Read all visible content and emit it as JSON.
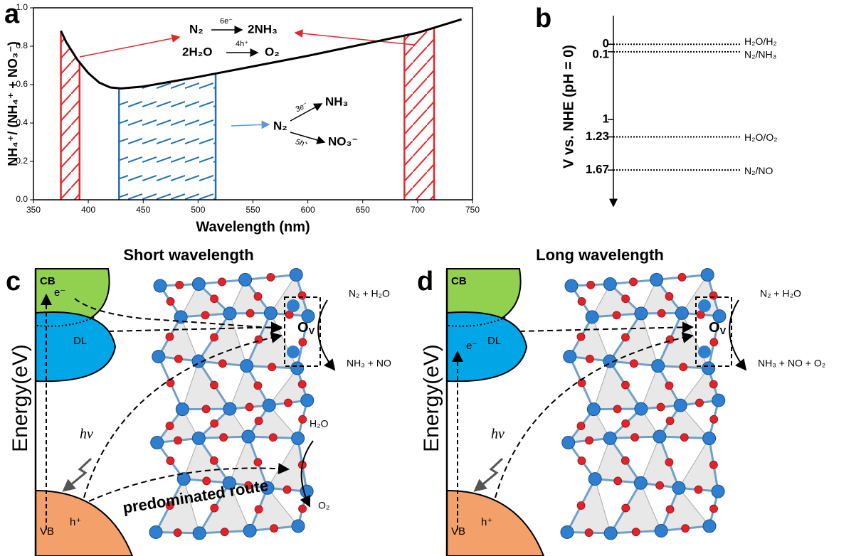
{
  "chart_data": [
    {
      "type": "line",
      "panel_label": "a",
      "xlabel": "Wavelength (nm)",
      "ylabel": "NH₄⁺/ (NH₄⁺ + NO₃⁻)",
      "x": [
        375,
        380,
        390,
        400,
        410,
        420,
        430,
        450,
        500,
        550,
        600,
        650,
        700,
        740
      ],
      "values": [
        0.88,
        0.82,
        0.73,
        0.66,
        0.61,
        0.585,
        0.58,
        0.59,
        0.64,
        0.695,
        0.75,
        0.81,
        0.87,
        0.94
      ],
      "color": "#000000",
      "xlim": [
        350,
        750
      ],
      "xticks": [
        350,
        400,
        450,
        500,
        550,
        600,
        650,
        700,
        750
      ],
      "ylim": [
        0,
        1
      ],
      "yticks": [
        {
          "value": 0,
          "label": "0.0"
        },
        0.2,
        0.4,
        0.6,
        0.8,
        {
          "value": 1,
          "label": "1.0"
        }
      ],
      "regions": [
        {
          "x": [
            375,
            392
          ],
          "color": "#e3262b"
        },
        {
          "x": [
            428,
            516
          ],
          "color": "#1f6fb2"
        },
        {
          "x": [
            688,
            715
          ],
          "color": "#e3262b"
        }
      ],
      "annotations": {
        "reaction_1": {
          "reactant": "N₂",
          "over": "6e⁻",
          "product": "2NH₃"
        },
        "reaction_2": {
          "reactant": "2H₂O",
          "over": "4h⁺",
          "product": "O₂"
        },
        "branch": {
          "reactant": "N₂",
          "upper_over": "3e⁻",
          "upper_product": "NH₃",
          "lower_over": "5h⁺",
          "lower_product": "NO₃⁻"
        }
      }
    },
    {
      "type": "levels",
      "panel_label": "b",
      "ylabel": "V vs. NHE (pH = 0)",
      "categories": [
        "H₂O/H₂",
        "N₂/NH₃",
        "H₂O/O₂",
        "N₂/NO"
      ],
      "values": [
        0,
        0.1,
        1.23,
        1.67
      ],
      "ylim": [
        -0.38,
        2.15
      ],
      "yticks": [
        0,
        0.1,
        1,
        1.23,
        1.67
      ]
    }
  ],
  "panels": [
    {
      "label": "c",
      "title": "Short wavelength",
      "energy_axis": "Energy(eV)",
      "cb": "CB",
      "dl": "DL",
      "vb": "VB",
      "electron": "e⁻",
      "hole": "h⁺",
      "photon": "hν",
      "vacancy": {
        "base": "O",
        "sub": "V"
      },
      "reactants": "N₂ + H₂O",
      "products": "NH₃ + NO",
      "water": "H₂O",
      "oxygen": "O₂",
      "route": "predominated route"
    },
    {
      "label": "d",
      "title": "Long wavelength",
      "energy_axis": "Energy(eV)",
      "cb": "CB",
      "dl": "DL",
      "vb": "VB",
      "electron": "e⁻",
      "hole": "h⁺",
      "photon": "hν",
      "vacancy": {
        "base": "O",
        "sub": "V"
      },
      "reactants": "N₂ + H₂O",
      "products": "NH₃ + NO + O₂"
    }
  ]
}
